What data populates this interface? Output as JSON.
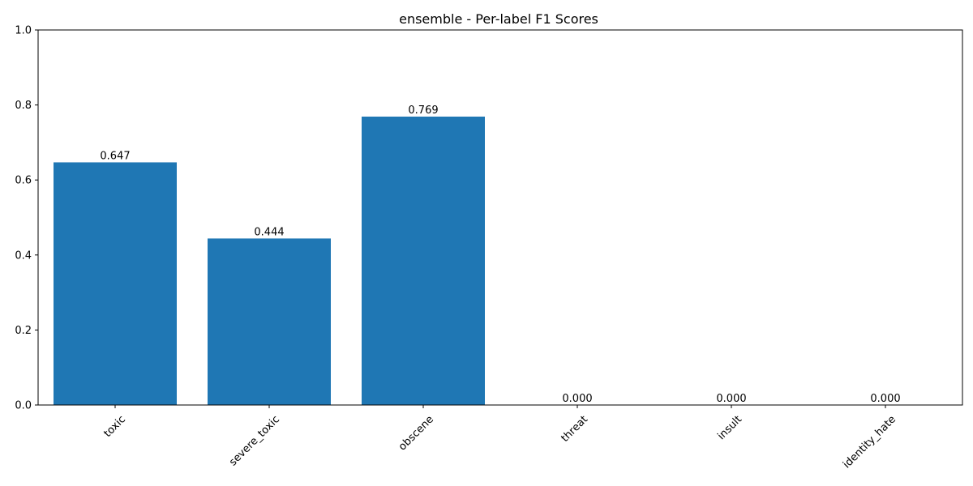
{
  "chart_data": {
    "type": "bar",
    "title": "ensemble - Per-label F1 Scores",
    "xlabel": "",
    "ylabel": "",
    "categories": [
      "toxic",
      "severe_toxic",
      "obscene",
      "threat",
      "insult",
      "identity_hate"
    ],
    "values": [
      0.647,
      0.444,
      0.769,
      0.0,
      0.0,
      0.0
    ],
    "value_labels": [
      "0.647",
      "0.444",
      "0.769",
      "0.000",
      "0.000",
      "0.000"
    ],
    "ylim": [
      0,
      1.0
    ],
    "yticks": [
      0.0,
      0.2,
      0.4,
      0.6,
      0.8,
      1.0
    ],
    "ytick_labels": [
      "0.0",
      "0.2",
      "0.4",
      "0.6",
      "0.8",
      "1.0"
    ],
    "xtick_rotation_deg": 45,
    "grid": false,
    "bar_color": "#1f77b4"
  }
}
